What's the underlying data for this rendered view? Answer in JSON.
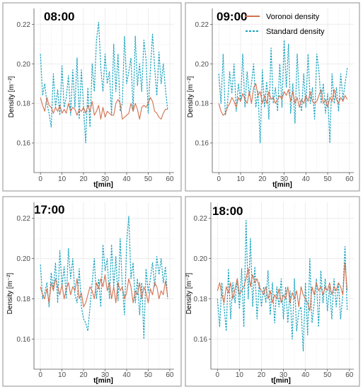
{
  "legend": {
    "voronoi_label": "Voronoi density",
    "standard_label": "Standard density"
  },
  "colors": {
    "voronoi": "#d2704f",
    "standard": "#1aa3bf",
    "grid": "#ebebeb"
  },
  "chart_data": [
    {
      "type": "line",
      "title": "08:00",
      "xlabel": "t[min]",
      "ylabel": "Density [m⁻²]",
      "xlim": [
        -3,
        62
      ],
      "ylim": [
        0.145,
        0.228
      ],
      "xticks": [
        0,
        10,
        20,
        30,
        40,
        50,
        60
      ],
      "yticks": [
        0.16,
        0.18,
        0.2,
        0.22
      ],
      "grid": true,
      "series": [
        {
          "name": "Voronoi density",
          "values": [
            0.183,
            0.179,
            0.176,
            0.183,
            0.179,
            0.178,
            0.175,
            0.178,
            0.176,
            0.179,
            0.175,
            0.177,
            0.175,
            0.18,
            0.176,
            0.178,
            0.177,
            0.174,
            0.177,
            0.176,
            0.178,
            0.175,
            0.179,
            0.176,
            0.181,
            0.174,
            0.176,
            0.179,
            0.172,
            0.178,
            0.173,
            0.176,
            0.175,
            0.174,
            0.174,
            0.18,
            0.182,
            0.18,
            0.172,
            0.173,
            0.174,
            0.175,
            0.18,
            0.176,
            0.18,
            0.177,
            0.172,
            0.178,
            0.179,
            0.178,
            0.18,
            0.183,
            0.181,
            0.176,
            0.175,
            0.173,
            0.172,
            0.175,
            0.177,
            0.177
          ]
        },
        {
          "name": "Standard density",
          "values": [
            0.205,
            0.184,
            0.19,
            0.18,
            0.175,
            0.168,
            0.195,
            0.178,
            0.187,
            0.174,
            0.199,
            0.178,
            0.183,
            0.194,
            0.174,
            0.197,
            0.178,
            0.203,
            0.172,
            0.197,
            0.178,
            0.16,
            0.188,
            0.168,
            0.2,
            0.186,
            0.212,
            0.221,
            0.198,
            0.186,
            0.205,
            0.19,
            0.196,
            0.174,
            0.21,
            0.186,
            0.205,
            0.176,
            0.18,
            0.214,
            0.19,
            0.196,
            0.203,
            0.176,
            0.214,
            0.189,
            0.2,
            0.186,
            0.212,
            0.202,
            0.175,
            0.197,
            0.215,
            0.198,
            0.184,
            0.206,
            0.19,
            0.2,
            0.187,
            0.177
          ]
        }
      ]
    },
    {
      "type": "line",
      "title": "09:00",
      "xlabel": "t[min]",
      "ylabel": "Density [m⁻²]",
      "xlim": [
        -3,
        62
      ],
      "ylim": [
        0.145,
        0.228
      ],
      "xticks": [
        0,
        10,
        20,
        30,
        40,
        50,
        60
      ],
      "yticks": [
        0.16,
        0.18,
        0.2,
        0.22
      ],
      "grid": true,
      "series": [
        {
          "name": "Voronoi density",
          "values": [
            0.18,
            0.176,
            0.174,
            0.175,
            0.178,
            0.18,
            0.183,
            0.181,
            0.178,
            0.183,
            0.181,
            0.185,
            0.182,
            0.18,
            0.186,
            0.18,
            0.188,
            0.19,
            0.184,
            0.186,
            0.18,
            0.184,
            0.18,
            0.186,
            0.182,
            0.183,
            0.18,
            0.182,
            0.184,
            0.182,
            0.186,
            0.184,
            0.187,
            0.181,
            0.186,
            0.18,
            0.183,
            0.178,
            0.182,
            0.18,
            0.184,
            0.181,
            0.186,
            0.181,
            0.18,
            0.181,
            0.184,
            0.187,
            0.18,
            0.182,
            0.178,
            0.183,
            0.181,
            0.187,
            0.182,
            0.18,
            0.183,
            0.181,
            0.184,
            0.182
          ]
        },
        {
          "name": "Standard density",
          "values": [
            0.195,
            0.18,
            0.205,
            0.174,
            0.18,
            0.196,
            0.185,
            0.2,
            0.176,
            0.19,
            0.181,
            0.205,
            0.178,
            0.196,
            0.184,
            0.19,
            0.2,
            0.178,
            0.186,
            0.16,
            0.197,
            0.178,
            0.191,
            0.172,
            0.208,
            0.18,
            0.188,
            0.176,
            0.2,
            0.178,
            0.212,
            0.188,
            0.21,
            0.175,
            0.19,
            0.17,
            0.205,
            0.183,
            0.176,
            0.195,
            0.178,
            0.205,
            0.18,
            0.188,
            0.172,
            0.205,
            0.196,
            0.18,
            0.19,
            0.175,
            0.185,
            0.16,
            0.195,
            0.18,
            0.188,
            0.176,
            0.195,
            0.182,
            0.19,
            0.198
          ]
        }
      ]
    },
    {
      "type": "line",
      "title": "17:00",
      "xlabel": "t[min]",
      "ylabel": "Density [m⁻²]",
      "xlim": [
        -3,
        62
      ],
      "ylim": [
        0.145,
        0.228
      ],
      "xticks": [
        0,
        10,
        20,
        30,
        40,
        50,
        60
      ],
      "yticks": [
        0.16,
        0.18,
        0.2,
        0.22
      ],
      "grid": true,
      "series": [
        {
          "name": "Voronoi density",
          "values": [
            0.186,
            0.182,
            0.18,
            0.185,
            0.178,
            0.188,
            0.184,
            0.19,
            0.186,
            0.182,
            0.187,
            0.18,
            0.185,
            0.188,
            0.182,
            0.186,
            0.184,
            0.19,
            0.18,
            0.183,
            0.176,
            0.178,
            0.182,
            0.186,
            0.184,
            0.18,
            0.188,
            0.185,
            0.19,
            0.186,
            0.192,
            0.184,
            0.188,
            0.18,
            0.186,
            0.178,
            0.188,
            0.184,
            0.186,
            0.18,
            0.183,
            0.19,
            0.186,
            0.178,
            0.184,
            0.182,
            0.188,
            0.18,
            0.186,
            0.183,
            0.178,
            0.185,
            0.182,
            0.188,
            0.186,
            0.18,
            0.184,
            0.182,
            0.189,
            0.181
          ]
        },
        {
          "name": "Standard density",
          "values": [
            0.197,
            0.18,
            0.183,
            0.188,
            0.176,
            0.193,
            0.185,
            0.198,
            0.178,
            0.204,
            0.186,
            0.196,
            0.18,
            0.205,
            0.19,
            0.2,
            0.182,
            0.178,
            0.195,
            0.176,
            0.17,
            0.168,
            0.164,
            0.176,
            0.188,
            0.2,
            0.18,
            0.19,
            0.176,
            0.207,
            0.194,
            0.2,
            0.18,
            0.207,
            0.186,
            0.201,
            0.179,
            0.21,
            0.186,
            0.172,
            0.208,
            0.221,
            0.19,
            0.198,
            0.178,
            0.19,
            0.172,
            0.188,
            0.16,
            0.195,
            0.183,
            0.19,
            0.198,
            0.186,
            0.201,
            0.192,
            0.2,
            0.188,
            0.196,
            0.18
          ]
        }
      ]
    },
    {
      "type": "line",
      "title": "18:00",
      "xlabel": "t[min]",
      "ylabel": "Density [m⁻²]",
      "xlim": [
        -3,
        62
      ],
      "ylim": [
        0.145,
        0.228
      ],
      "xticks": [
        0,
        10,
        20,
        30,
        40,
        50,
        60
      ],
      "yticks": [
        0.16,
        0.18,
        0.2,
        0.22
      ],
      "grid": true,
      "series": [
        {
          "name": "Voronoi density",
          "values": [
            0.184,
            0.188,
            0.182,
            0.178,
            0.186,
            0.183,
            0.188,
            0.18,
            0.185,
            0.19,
            0.182,
            0.184,
            0.186,
            0.19,
            0.195,
            0.186,
            0.192,
            0.188,
            0.19,
            0.186,
            0.184,
            0.182,
            0.186,
            0.18,
            0.184,
            0.178,
            0.182,
            0.18,
            0.185,
            0.178,
            0.182,
            0.18,
            0.186,
            0.178,
            0.183,
            0.18,
            0.184,
            0.176,
            0.186,
            0.182,
            0.18,
            0.178,
            0.174,
            0.186,
            0.182,
            0.188,
            0.184,
            0.186,
            0.182,
            0.186,
            0.184,
            0.188,
            0.182,
            0.186,
            0.184,
            0.188,
            0.186,
            0.182,
            0.198,
            0.184
          ]
        },
        {
          "name": "Standard density",
          "values": [
            0.18,
            0.166,
            0.188,
            0.176,
            0.164,
            0.195,
            0.17,
            0.188,
            0.178,
            0.19,
            0.175,
            0.195,
            0.166,
            0.219,
            0.18,
            0.21,
            0.176,
            0.196,
            0.17,
            0.188,
            0.176,
            0.186,
            0.178,
            0.194,
            0.172,
            0.188,
            0.168,
            0.186,
            0.176,
            0.19,
            0.17,
            0.186,
            0.168,
            0.184,
            0.16,
            0.19,
            0.164,
            0.174,
            0.176,
            0.154,
            0.188,
            0.162,
            0.2,
            0.168,
            0.178,
            0.19,
            0.166,
            0.194,
            0.178,
            0.19,
            0.174,
            0.186,
            0.17,
            0.19,
            0.176,
            0.188,
            0.17,
            0.182,
            0.206,
            0.174
          ]
        }
      ]
    }
  ]
}
